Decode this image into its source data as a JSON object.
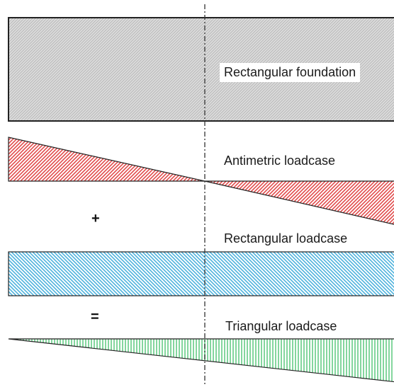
{
  "labels": {
    "foundation": "Rectangular foundation",
    "antimetric": "Antimetric loadcase",
    "plus": "+",
    "rectangular": "Rectangular loadcase",
    "equals": "=",
    "triangular": "Triangular loadcase"
  },
  "colors": {
    "foundation_fill": "#dcdcdc",
    "antimetric_fill": "#e85a5a",
    "rectangular_fill": "#62bde3",
    "triangular_fill": "#7fd49a",
    "outline": "#222222"
  }
}
